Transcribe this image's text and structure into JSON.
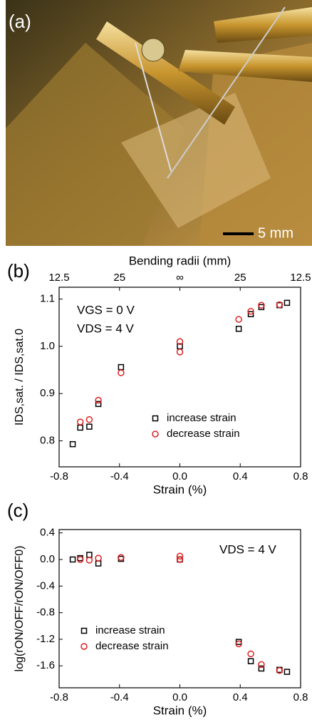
{
  "photo": {
    "panel_label": "(a)",
    "scale_bar": "5 mm"
  },
  "chart_data": [
    {
      "type": "scatter",
      "panel_label": "(b)",
      "x2label": "Bending radii (mm)",
      "x2ticks": [
        {
          "value": -0.8,
          "label": "12.5"
        },
        {
          "value": -0.4,
          "label": "25"
        },
        {
          "value": 0,
          "label": "∞"
        },
        {
          "value": 0.4,
          "label": "25"
        },
        {
          "value": 0.8,
          "label": "12.5"
        }
      ],
      "xlabel": "Strain (%)",
      "ylabel": "IDS,sat. / IDS,sat.0",
      "annotations": [
        "VGS = 0 V",
        "VDS = 4 V"
      ],
      "xlim": [
        -0.8,
        0.8
      ],
      "xticks": [
        -0.8,
        -0.4,
        {
          "value": 0,
          "label": "0.0"
        },
        0.4,
        0.8
      ],
      "ylim": [
        0.745,
        1.125
      ],
      "yticks": [
        0.8,
        0.9,
        {
          "value": 1,
          "label": "1.0"
        },
        1.1
      ],
      "legend": "lower right",
      "series": [
        {
          "name": "increase strain",
          "color": "#000000",
          "marker": "square",
          "x": [
            -0.71,
            -0.66,
            -0.6,
            -0.54,
            -0.39,
            0,
            0.39,
            0.47,
            0.54,
            0.66,
            0.71
          ],
          "values": [
            0.793,
            0.828,
            0.83,
            0.878,
            0.956,
            1.0,
            1.037,
            1.068,
            1.083,
            1.087,
            1.092
          ]
        },
        {
          "name": "decrease strain",
          "color": "#e02020",
          "marker": "circle",
          "x": [
            -0.66,
            -0.6,
            -0.54,
            -0.39,
            0,
            0,
            0.39,
            0.47,
            0.54,
            0.66
          ],
          "values": [
            0.84,
            0.845,
            0.886,
            0.944,
            1.01,
            0.988,
            1.057,
            1.074,
            1.087,
            1.088
          ]
        }
      ]
    },
    {
      "type": "scatter",
      "panel_label": "(c)",
      "xlabel": "Strain (%)",
      "ylabel": "log(rON/OFF/rON/OFF0)",
      "annotations": [
        "VDS = 4 V"
      ],
      "xlim": [
        -0.8,
        0.8
      ],
      "xticks": [
        -0.8,
        -0.4,
        {
          "value": 0,
          "label": "0.0"
        },
        0.4,
        0.8
      ],
      "ylim": [
        -1.93,
        0.45
      ],
      "yticks": [
        0.4,
        {
          "value": 0,
          "label": "0.0"
        },
        -0.4,
        -0.8,
        -1.2,
        -1.6
      ],
      "legend": "lower left",
      "series": [
        {
          "name": "increase strain",
          "color": "#000000",
          "marker": "square",
          "x": [
            -0.71,
            -0.66,
            -0.6,
            -0.54,
            -0.39,
            0,
            0.39,
            0.47,
            0.54,
            0.66,
            0.71
          ],
          "values": [
            0.0,
            0.02,
            0.07,
            -0.06,
            0.01,
            0.0,
            -1.24,
            -1.53,
            -1.64,
            -1.66,
            -1.69
          ]
        },
        {
          "name": "decrease strain",
          "color": "#e02020",
          "marker": "circle",
          "x": [
            -0.66,
            -0.6,
            -0.54,
            -0.39,
            0,
            0,
            0.39,
            0.47,
            0.54,
            0.66
          ],
          "values": [
            0.0,
            -0.01,
            0.02,
            0.03,
            0.05,
            0.0,
            -1.27,
            -1.42,
            -1.58,
            -1.67
          ]
        }
      ]
    }
  ]
}
